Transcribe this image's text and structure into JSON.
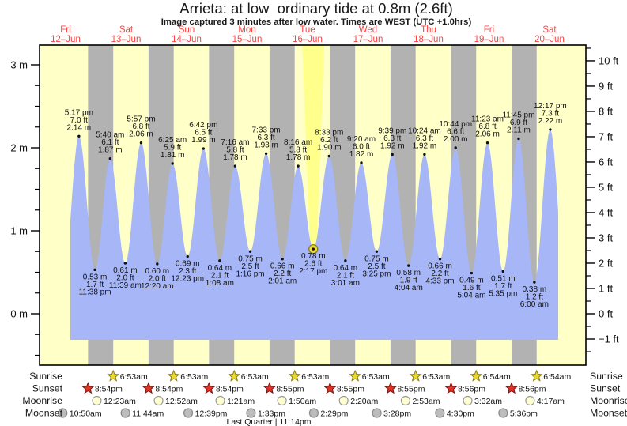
{
  "title": "Arrieta: at low  ordinary tide at 0.8m (2.6ft)",
  "subtitle": "Image captured 3 minutes after low water. Times are WEST (UTC +1.0hrs)",
  "colors": {
    "day_band": "#ffffc8",
    "night_band": "#b2b2b2",
    "tide_fill": "#a6b6f6",
    "highlight_beam": "#ffff8c",
    "date_red": "#ff4040",
    "annotation_text": "#111111",
    "sunrise_star": "#e8d830",
    "sunrise_star_edge": "#8a7d18",
    "sunset_star": "#e23226",
    "sunset_star_edge": "#7c150f",
    "moonrise_fill": "#ffffd4",
    "moonrise_edge": "#9a9a9a",
    "moonset_fill": "#bcbcbc",
    "moonset_edge": "#8a8a8a",
    "current_marker_fill": "#eedd44",
    "current_marker_edge": "#887f1b"
  },
  "chart_data": {
    "type": "area",
    "title": "Arrieta: at low ordinary tide at 0.8m (2.6ft)",
    "subtitle": "Image captured 3 minutes after low water. Times are WEST (UTC +1.0hrs)",
    "timezone": "WEST (UTC +1.0hrs)",
    "legend_position": "none",
    "grid": false,
    "y_axis_left": {
      "unit": "m",
      "tick_labels": [
        "0 m",
        "1 m",
        "2 m",
        "3 m"
      ],
      "major_ticks": [
        0,
        1,
        2,
        3
      ],
      "minor_step": 0.25,
      "range_m": [
        -0.62,
        3.24
      ]
    },
    "y_axis_right": {
      "unit": "ft",
      "major_ticks": [
        -1,
        0,
        1,
        2,
        3,
        4,
        5,
        6,
        7,
        8,
        9,
        10
      ],
      "minor_step": 0.5,
      "range_ft": [
        -2.0,
        10.6
      ]
    },
    "days": [
      {
        "name": "Fri",
        "date": "12–Jun"
      },
      {
        "name": "Sat",
        "date": "13–Jun"
      },
      {
        "name": "Sun",
        "date": "14–Jun"
      },
      {
        "name": "Mon",
        "date": "15–Jun"
      },
      {
        "name": "Tue",
        "date": "16–Jun"
      },
      {
        "name": "Wed",
        "date": "17–Jun"
      },
      {
        "name": "Thu",
        "date": "18–Jun"
      },
      {
        "name": "Fri",
        "date": "19–Jun"
      },
      {
        "name": "Sat",
        "date": "20–Jun"
      }
    ],
    "tides": [
      {
        "day": 0,
        "type": "high",
        "time": "5:17 pm",
        "ft": "7.0 ft",
        "m": "2.14 m"
      },
      {
        "day": 0,
        "type": "low",
        "time": "11:38 pm",
        "ft": "1.7 ft",
        "m": "0.53 m"
      },
      {
        "day": 1,
        "type": "high",
        "time": "5:40 am",
        "ft": "6.1 ft",
        "m": "1.87 m"
      },
      {
        "day": 1,
        "type": "low",
        "time": "11:39 am",
        "ft": "2.0 ft",
        "m": "0.61 m"
      },
      {
        "day": 1,
        "type": "high",
        "time": "5:57 pm",
        "ft": "6.8 ft",
        "m": "2.06 m"
      },
      {
        "day": 2,
        "type": "low",
        "time": "12:20 am",
        "ft": "2.0 ft",
        "m": "0.60 m"
      },
      {
        "day": 2,
        "type": "high",
        "time": "6:25 am",
        "ft": "5.9 ft",
        "m": "1.81 m"
      },
      {
        "day": 2,
        "type": "low",
        "time": "12:23 pm",
        "ft": "2.3 ft",
        "m": "0.69 m"
      },
      {
        "day": 2,
        "type": "high",
        "time": "6:42 pm",
        "ft": "6.5 ft",
        "m": "1.99 m"
      },
      {
        "day": 3,
        "type": "low",
        "time": "1:08 am",
        "ft": "2.1 ft",
        "m": "0.64 m"
      },
      {
        "day": 3,
        "type": "high",
        "time": "7:16 am",
        "ft": "5.8 ft",
        "m": "1.78 m"
      },
      {
        "day": 3,
        "type": "low",
        "time": "1:16 pm",
        "ft": "2.5 ft",
        "m": "0.75 m"
      },
      {
        "day": 3,
        "type": "high",
        "time": "7:33 pm",
        "ft": "6.3 ft",
        "m": "1.93 m"
      },
      {
        "day": 4,
        "type": "low",
        "time": "2:01 am",
        "ft": "2.2 ft",
        "m": "0.66 m"
      },
      {
        "day": 4,
        "type": "high",
        "time": "8:16 am",
        "ft": "5.8 ft",
        "m": "1.78 m"
      },
      {
        "day": 4,
        "type": "low",
        "time": "2:17 pm",
        "ft": "2.6 ft",
        "m": "0.78 m",
        "current": true
      },
      {
        "day": 4,
        "type": "high",
        "time": "8:33 pm",
        "ft": "6.2 ft",
        "m": "1.90 m"
      },
      {
        "day": 5,
        "type": "low",
        "time": "3:01 am",
        "ft": "2.1 ft",
        "m": "0.64 m"
      },
      {
        "day": 5,
        "type": "high",
        "time": "9:20 am",
        "ft": "6.0 ft",
        "m": "1.82 m"
      },
      {
        "day": 5,
        "type": "low",
        "time": "3:25 pm",
        "ft": "2.5 ft",
        "m": "0.75 m"
      },
      {
        "day": 5,
        "type": "high",
        "time": "9:39 pm",
        "ft": "6.3 ft",
        "m": "1.92 m"
      },
      {
        "day": 6,
        "type": "low",
        "time": "4:04 am",
        "ft": "1.9 ft",
        "m": "0.58 m"
      },
      {
        "day": 6,
        "type": "high",
        "time": "10:24 am",
        "ft": "6.3 ft",
        "m": "1.92 m"
      },
      {
        "day": 6,
        "type": "low",
        "time": "4:33 pm",
        "ft": "2.2 ft",
        "m": "0.66 m"
      },
      {
        "day": 6,
        "type": "high",
        "time": "10:44 pm",
        "ft": "6.6 ft",
        "m": "2.00 m"
      },
      {
        "day": 7,
        "type": "low",
        "time": "5:04 am",
        "ft": "1.6 ft",
        "m": "0.49 m"
      },
      {
        "day": 7,
        "type": "high",
        "time": "11:23 am",
        "ft": "6.8 ft",
        "m": "2.06 m"
      },
      {
        "day": 7,
        "type": "low",
        "time": "5:35 pm",
        "ft": "1.7 ft",
        "m": "0.51 m"
      },
      {
        "day": 7,
        "type": "high",
        "time": "11:45 pm",
        "ft": "6.9 ft",
        "m": "2.11 m"
      },
      {
        "day": 8,
        "type": "low",
        "time": "6:00 am",
        "ft": "1.2 ft",
        "m": "0.38 m"
      },
      {
        "day": 8,
        "type": "high",
        "time": "12:17 pm",
        "ft": "7.3 ft",
        "m": "2.22 m"
      }
    ]
  },
  "almanac": {
    "rows": [
      {
        "label": "Sunrise",
        "marker": "sunrise-star",
        "entries": [
          {
            "day": 1,
            "time": "6:53am"
          },
          {
            "day": 2,
            "time": "6:53am"
          },
          {
            "day": 3,
            "time": "6:53am"
          },
          {
            "day": 4,
            "time": "6:53am"
          },
          {
            "day": 5,
            "time": "6:53am"
          },
          {
            "day": 6,
            "time": "6:53am"
          },
          {
            "day": 7,
            "time": "6:54am"
          },
          {
            "day": 8,
            "time": "6:54am"
          }
        ]
      },
      {
        "label": "Sunset",
        "marker": "sunset-star",
        "entries": [
          {
            "day": 0,
            "time": "8:54pm"
          },
          {
            "day": 1,
            "time": "8:54pm"
          },
          {
            "day": 2,
            "time": "8:54pm"
          },
          {
            "day": 3,
            "time": "8:55pm"
          },
          {
            "day": 4,
            "time": "8:55pm"
          },
          {
            "day": 5,
            "time": "8:55pm"
          },
          {
            "day": 6,
            "time": "8:56pm"
          },
          {
            "day": 7,
            "time": "8:56pm"
          }
        ]
      },
      {
        "label": "Moonrise",
        "marker": "moon-light",
        "entries": [
          {
            "day": 1,
            "time": "12:23am"
          },
          {
            "day": 2,
            "time": "12:52am"
          },
          {
            "day": 3,
            "time": "1:21am"
          },
          {
            "day": 4,
            "time": "1:50am"
          },
          {
            "day": 5,
            "time": "2:20am"
          },
          {
            "day": 6,
            "time": "2:53am"
          },
          {
            "day": 7,
            "time": "3:32am"
          },
          {
            "day": 8,
            "time": "4:17am"
          }
        ]
      },
      {
        "label": "Moonset",
        "marker": "moon-dark",
        "entries": [
          {
            "day": 0,
            "time": "10:50am"
          },
          {
            "day": 1,
            "time": "11:44am"
          },
          {
            "day": 2,
            "time": "12:39pm"
          },
          {
            "day": 3,
            "time": "1:33pm"
          },
          {
            "day": 4,
            "time": "2:29pm"
          },
          {
            "day": 5,
            "time": "3:28pm"
          },
          {
            "day": 6,
            "time": "4:30pm"
          },
          {
            "day": 7,
            "time": "5:36pm"
          }
        ]
      }
    ],
    "footer": "Last Quarter | 11:14pm"
  }
}
